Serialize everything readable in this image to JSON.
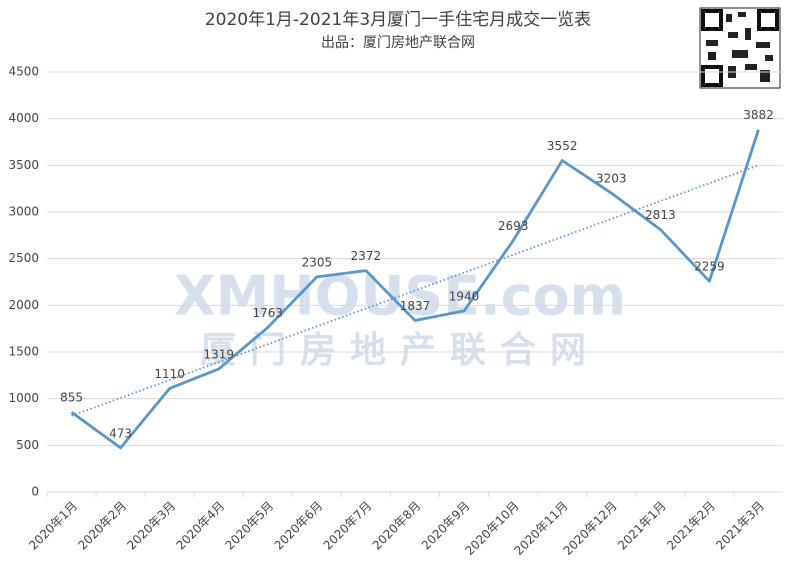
{
  "chart_data": {
    "type": "line",
    "title": "2020年1月-2021年3月厦门一手住宅月成交一览表",
    "subtitle": "出品：厦门房地产联合网",
    "watermark": {
      "logo": "XMHOUSE.com",
      "name": "厦门房地产联合网"
    },
    "categories": [
      "2020年1月",
      "2020年2月",
      "2020年3月",
      "2020年4月",
      "2020年5月",
      "2020年6月",
      "2020年7月",
      "2020年8月",
      "2020年9月",
      "2020年10月",
      "2020年11月",
      "2020年12月",
      "2021年1月",
      "2021年2月",
      "2021年3月"
    ],
    "values": [
      855,
      473,
      1110,
      1319,
      1763,
      2305,
      2372,
      1837,
      1940,
      2693,
      3552,
      3203,
      2813,
      2259,
      3882
    ],
    "color": "#5b96c8",
    "trendline": true,
    "ylim": [
      0,
      4500
    ],
    "yticks": [
      0,
      500,
      1000,
      1500,
      2000,
      2500,
      3000,
      3500,
      4000,
      4500
    ],
    "grid": true
  }
}
